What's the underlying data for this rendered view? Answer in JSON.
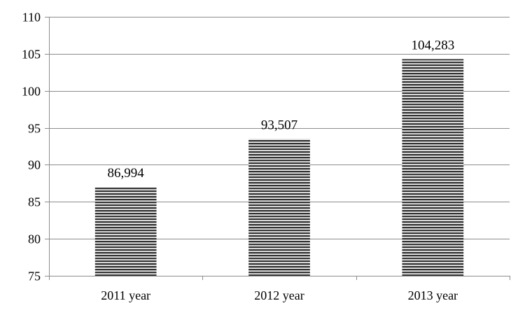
{
  "chart_data": {
    "type": "bar",
    "categories": [
      "2011 year",
      "2012 year",
      "2013 year"
    ],
    "values": [
      86.994,
      93.507,
      104.283
    ],
    "data_labels": [
      "86,994",
      "93,507",
      "104,283"
    ],
    "title": "",
    "xlabel": "",
    "ylabel": "",
    "ylim": [
      75,
      110
    ],
    "yticks": [
      75,
      80,
      85,
      90,
      95,
      100,
      105,
      110
    ],
    "ytick_labels": [
      "75",
      "80",
      "85",
      "90",
      "95",
      "100",
      "105",
      "110"
    ],
    "grid": true,
    "legend": "none",
    "bar_fill": "horizontal-stripes",
    "bar_color": "#333333"
  }
}
